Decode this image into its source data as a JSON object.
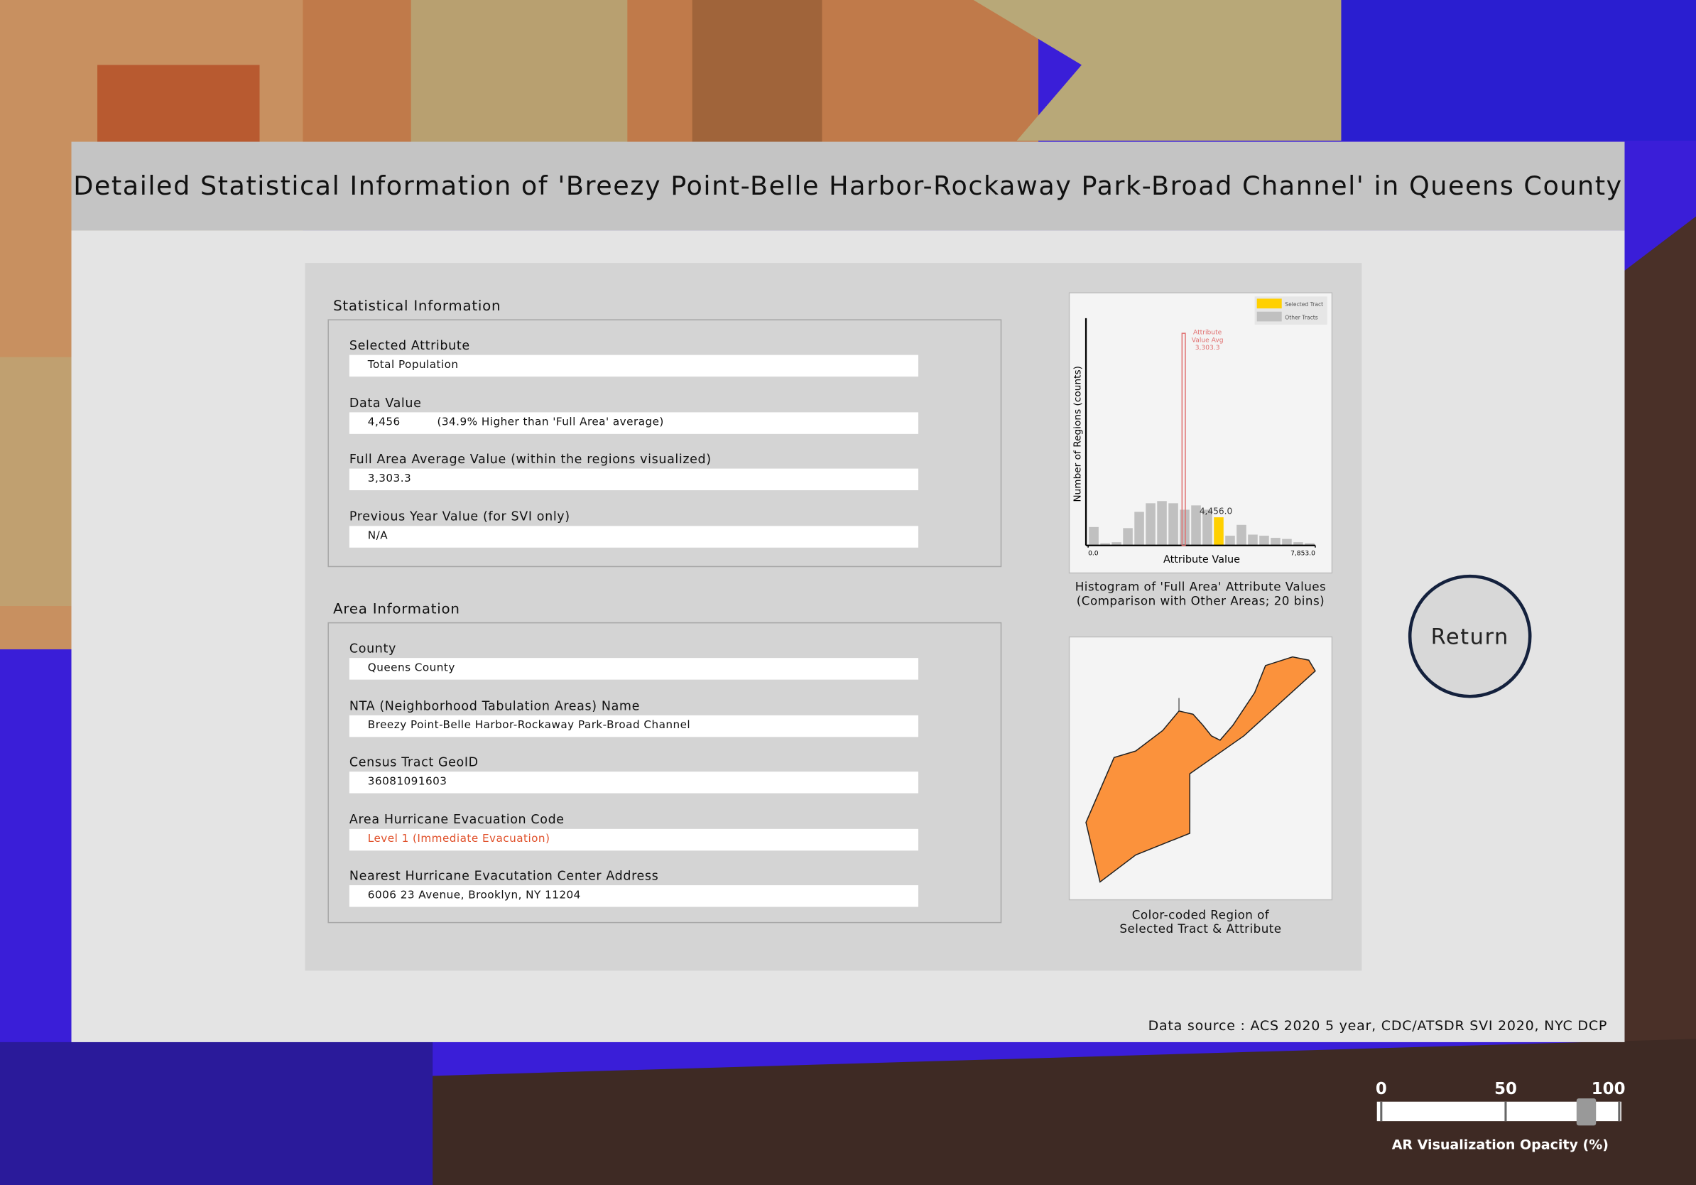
{
  "header": {
    "title": "Detailed Statistical Information of 'Breezy Point-Belle Harbor-Rockaway Park-Broad Channel' in Queens County"
  },
  "statistical_information": {
    "heading": "Statistical Information",
    "fields": [
      {
        "label": "Selected Attribute",
        "value": "Total Population"
      },
      {
        "label": "Data Value",
        "value": "4,456",
        "note": "(34.9% Higher than 'Full Area' average)"
      },
      {
        "label": "Full Area Average Value (within the regions visualized)",
        "value": "3,303.3"
      },
      {
        "label": "Previous Year Value (for SVI only)",
        "value": "N/A"
      }
    ]
  },
  "area_information": {
    "heading": "Area Information",
    "fields": [
      {
        "label": "County",
        "value": "Queens County"
      },
      {
        "label": "NTA (Neighborhood Tabulation Areas) Name",
        "value": "Breezy Point-Belle Harbor-Rockaway Park-Broad Channel"
      },
      {
        "label": "Census Tract GeoID",
        "value": "36081091603"
      },
      {
        "label": "Area Hurricane Evacuation Code",
        "value": "Level 1 (Immediate Evacuation)",
        "color": "#e0502a"
      },
      {
        "label": "Nearest Hurricane Evacutation Center Address",
        "value": "6006 23 Avenue, Brooklyn, NY 11204"
      }
    ]
  },
  "chart_data": {
    "type": "histogram",
    "caption_lines": [
      "Histogram of 'Full Area' Attribute Values",
      "(Comparison with Other Areas; 20 bins)"
    ],
    "x_label": "Attribute Value",
    "y_label": "Number of Regions (counts)",
    "bins": [
      0,
      392.65,
      785.3,
      1177.95,
      1570.6,
      1963.25,
      2355.9,
      2748.55,
      3141.2,
      3533.85,
      3926.5,
      4319.15,
      4711.8,
      5104.45,
      5497.1,
      5889.75,
      6282.4,
      6675.05,
      7067.7,
      7460.35,
      7853
    ],
    "counts": [
      17,
      2,
      3,
      16,
      31,
      39,
      41,
      39,
      33,
      37,
      33,
      26,
      9,
      19,
      10,
      9,
      7,
      6,
      3,
      2
    ],
    "xlim": [
      0,
      7853
    ],
    "ylim": [
      0,
      50
    ],
    "xticks": [
      {
        "value": 0,
        "label": "0.0"
      },
      {
        "value": 7853,
        "label": "7,853.0"
      }
    ],
    "selected_value": 4456,
    "selected_value_label": "4,456.0",
    "average": {
      "value": 3303.3,
      "label_lines": [
        "Attribute",
        "Value Avg",
        "3,303.3"
      ],
      "color": "#e07070"
    },
    "legend": [
      {
        "name": "Selected Tract",
        "color": "#ffd000"
      },
      {
        "name": "Other Tracts",
        "color": "#c0c0c0"
      }
    ]
  },
  "map": {
    "caption_lines": [
      "Color-coded Region of",
      "Selected Tract & Attribute"
    ]
  },
  "return_button": {
    "label": "Return"
  },
  "footer": {
    "source": "Data source : ACS 2020 5 year, CDC/ATSDR SVI 2020, NYC DCP"
  },
  "slider": {
    "label": "AR Visualization Opacity (%)",
    "ticks": [
      0,
      50,
      100
    ],
    "range": [
      0,
      100
    ],
    "value": 88
  }
}
